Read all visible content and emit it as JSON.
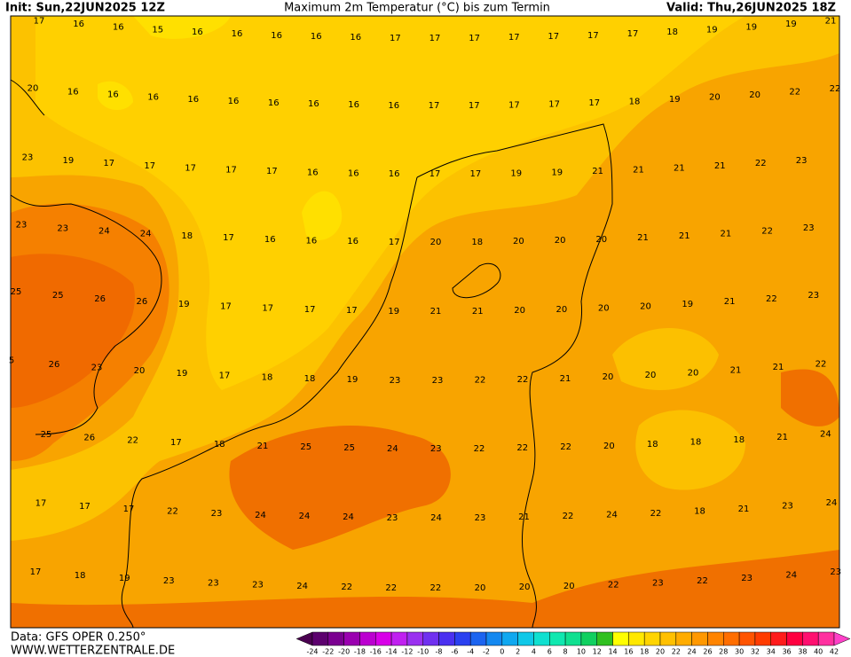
{
  "header": {
    "init": "Init: Sun,22JUN2025 12Z",
    "title": "Maximum 2m Temperatur (°C) bis zum Termin",
    "valid": "Valid: Thu,26JUN2025 18Z"
  },
  "map": {
    "rows": [
      [
        17,
        16,
        16,
        15,
        16,
        16,
        16,
        16,
        16,
        17,
        17,
        17,
        17,
        17,
        17,
        17,
        18,
        19,
        19,
        19,
        21
      ],
      [
        20,
        16,
        16,
        16,
        16,
        16,
        16,
        16,
        16,
        16,
        17,
        17,
        17,
        17,
        17,
        18,
        19,
        20,
        20,
        22,
        22
      ],
      [
        23,
        19,
        17,
        17,
        17,
        17,
        17,
        16,
        16,
        16,
        17,
        17,
        19,
        19,
        21,
        21,
        21,
        21,
        22,
        23
      ],
      [
        23,
        23,
        24,
        24,
        18,
        17,
        16,
        16,
        16,
        17,
        20,
        18,
        20,
        20,
        20,
        21,
        21,
        21,
        22,
        23
      ],
      [
        25,
        25,
        26,
        26,
        19,
        17,
        17,
        17,
        17,
        19,
        21,
        21,
        20,
        20,
        20,
        20,
        19,
        21,
        22,
        23
      ],
      [
        5,
        26,
        23,
        20,
        19,
        17,
        18,
        18,
        19,
        23,
        23,
        22,
        22,
        21,
        20,
        20,
        20,
        21,
        21,
        22
      ],
      [
        25,
        26,
        22,
        17,
        18,
        21,
        25,
        25,
        24,
        23,
        22,
        22,
        22,
        20,
        18,
        18,
        18,
        21,
        24
      ],
      [
        17,
        17,
        17,
        22,
        23,
        24,
        24,
        24,
        23,
        24,
        23,
        21,
        22,
        24,
        22,
        18,
        21,
        23,
        24
      ],
      [
        17,
        18,
        19,
        23,
        23,
        23,
        24,
        22,
        22,
        22,
        20,
        20,
        20,
        22,
        23,
        22,
        23,
        24,
        23
      ]
    ]
  },
  "footer": {
    "data": "Data: GFS OPER 0.250°",
    "site": "WWW.WETTERZENTRALE.DE"
  },
  "colorbar": {
    "labels": [
      -24,
      -22,
      -20,
      -18,
      -16,
      -14,
      -12,
      -10,
      -8,
      -6,
      -4,
      -2,
      0,
      2,
      4,
      6,
      8,
      10,
      12,
      14,
      16,
      18,
      20,
      22,
      24,
      26,
      28,
      30,
      32,
      34,
      36,
      38,
      40,
      42
    ],
    "colors": [
      "#4a0050",
      "#5c006e",
      "#7a0090",
      "#9a00b0",
      "#bb00d0",
      "#d800e8",
      "#c020f0",
      "#9a30f0",
      "#7030f0",
      "#4a30f0",
      "#2a40f0",
      "#1c64f0",
      "#1488f0",
      "#10a8f0",
      "#10c8e8",
      "#10e0d0",
      "#10e8b0",
      "#10e090",
      "#10d060",
      "#30c020",
      "#ffff00",
      "#ffe800",
      "#ffd400",
      "#ffc000",
      "#ffac00",
      "#ff9800",
      "#ff8400",
      "#ff6e00",
      "#ff5400",
      "#ff3c00",
      "#ff1c1c",
      "#ff0040",
      "#ff1070",
      "#ff30a0",
      "#ff40c8"
    ]
  }
}
